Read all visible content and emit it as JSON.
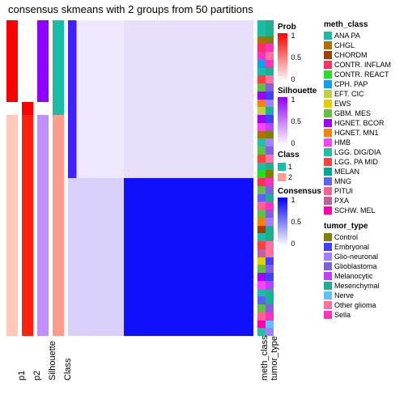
{
  "title": "consensus skmeans with 2 groups from 50 partitions",
  "left_annotations": {
    "p1": {
      "width": 14,
      "label": "p1"
    },
    "p2": {
      "width": 14,
      "label": "p2"
    },
    "silhouette": {
      "width": 14,
      "label": "Silhouette"
    },
    "class": {
      "width": 14,
      "label": "Class"
    }
  },
  "right_annotations": {
    "meth_class": {
      "width": 10,
      "label": "meth_class"
    },
    "tumor_type": {
      "width": 10,
      "label": "tumor_type"
    }
  },
  "class_split": 0.3,
  "colors": {
    "red_high": "#ff0000",
    "red_mid": "#ffb0a0",
    "red_low": "#ffe0d8",
    "white": "#ffffff",
    "purple_high": "#9000ff",
    "purple_mid": "#d8c0ff",
    "purple_low": "#f0e8ff",
    "blue_high": "#0000ff",
    "blue_mid": "#9090ff",
    "blue_low": "#e0e0ff",
    "class1": "#1cbba7",
    "class2": "#ff9c8c",
    "bg": "#ffffff"
  },
  "heatmap_blocks": {
    "tl": "#e8e0ff",
    "tr": "#d8d0f5",
    "bl": "#e0d8ff",
    "br": "#1010ff",
    "tl_dark": "#6040ff"
  },
  "legend_prob": {
    "title": "Prob",
    "min": "0",
    "mid": "0.5",
    "max": "1"
  },
  "legend_sil": {
    "title": "Silhouette",
    "min": "0",
    "mid": "0.5",
    "max": "1"
  },
  "legend_class": {
    "title": "Class"
  },
  "legend_cons": {
    "title": "Consensus",
    "min": "0",
    "mid": "0.5",
    "max": "1"
  },
  "meth_class_legend": {
    "title": "meth_class",
    "items": [
      {
        "label": "ANA PA",
        "color": "#1cbba7"
      },
      {
        "label": "CHGL",
        "color": "#b07000"
      },
      {
        "label": "CHORDM",
        "color": "#a04000"
      },
      {
        "label": "CONTR. INFLAM",
        "color": "#ff3060"
      },
      {
        "label": "CONTR. REACT",
        "color": "#20e020"
      },
      {
        "label": "CPH. PAP",
        "color": "#10a0f0"
      },
      {
        "label": "EFT. CIC",
        "color": "#c0d040"
      },
      {
        "label": "EWS",
        "color": "#e0d000"
      },
      {
        "label": "GBM. MES",
        "color": "#60c040"
      },
      {
        "label": "HGNET. BCOR",
        "color": "#a000ff"
      },
      {
        "label": "HGNET. MN1",
        "color": "#ff8000"
      },
      {
        "label": "HMB",
        "color": "#ff40ff"
      },
      {
        "label": "LGG. DIG/DIA",
        "color": "#20c0a0"
      },
      {
        "label": "LGG. PA MID",
        "color": "#ff4040"
      },
      {
        "label": "MELAN",
        "color": "#00a890"
      },
      {
        "label": "MNG",
        "color": "#6060ff"
      },
      {
        "label": "PITUI",
        "color": "#ff6090"
      },
      {
        "label": "PXA",
        "color": "#c060a0"
      },
      {
        "label": "SCHW. MEL",
        "color": "#ff00b0"
      }
    ]
  },
  "tumor_type_legend": {
    "title": "tumor_type",
    "items": [
      {
        "label": "Control",
        "color": "#808000"
      },
      {
        "label": "Embryonal",
        "color": "#4040ff"
      },
      {
        "label": "Glio-neuronal",
        "color": "#a080ff"
      },
      {
        "label": "Glioblastoma",
        "color": "#8060e0"
      },
      {
        "label": "Melanocytic",
        "color": "#c040ff"
      },
      {
        "label": "Mesenchymal",
        "color": "#1cb090"
      },
      {
        "label": "Nerve",
        "color": "#60c0ff"
      },
      {
        "label": "Other glioma",
        "color": "#ff70a0"
      },
      {
        "label": "Sella",
        "color": "#ff30c0"
      }
    ]
  },
  "meth_class_column_pattern": [
    "#1cbba7",
    "#1cbba7",
    "#b07000",
    "#ff3060",
    "#ff30c0",
    "#10a0f0",
    "#1cbba7",
    "#ff4040",
    "#60c040",
    "#a000ff",
    "#ff8000",
    "#c0d040",
    "#a000ff",
    "#ff40ff",
    "#b07000",
    "#20c0a0",
    "#60c040",
    "#ff4040",
    "#1cbba7",
    "#20e020",
    "#ff3060",
    "#60c040",
    "#6060ff",
    "#ff6090",
    "#60c040",
    "#ff8000",
    "#a04000",
    "#1cbba7",
    "#ff4040",
    "#c060a0",
    "#e0d000",
    "#60c040",
    "#a000ff",
    "#ff40ff",
    "#1cbba7",
    "#6060ff",
    "#60c040",
    "#ff6090",
    "#ff00b0",
    "#20c0a0"
  ],
  "tumor_type_column_pattern": [
    "#1cb090",
    "#1cb090",
    "#808000",
    "#ff30c0",
    "#ff70a0",
    "#ff30c0",
    "#1cb090",
    "#ff70a0",
    "#8060e0",
    "#4040ff",
    "#a080ff",
    "#1cb090",
    "#4040ff",
    "#c040ff",
    "#808000",
    "#a080ff",
    "#8060e0",
    "#ff70a0",
    "#1cb090",
    "#808000",
    "#ff30c0",
    "#8060e0",
    "#1cb090",
    "#ff30c0",
    "#8060e0",
    "#a080ff",
    "#1cb090",
    "#1cb090",
    "#ff70a0",
    "#ff70a0",
    "#4040ff",
    "#8060e0",
    "#4040ff",
    "#c040ff",
    "#1cb090",
    "#1cb090",
    "#8060e0",
    "#ff30c0",
    "#60c0ff",
    "#a080ff"
  ]
}
